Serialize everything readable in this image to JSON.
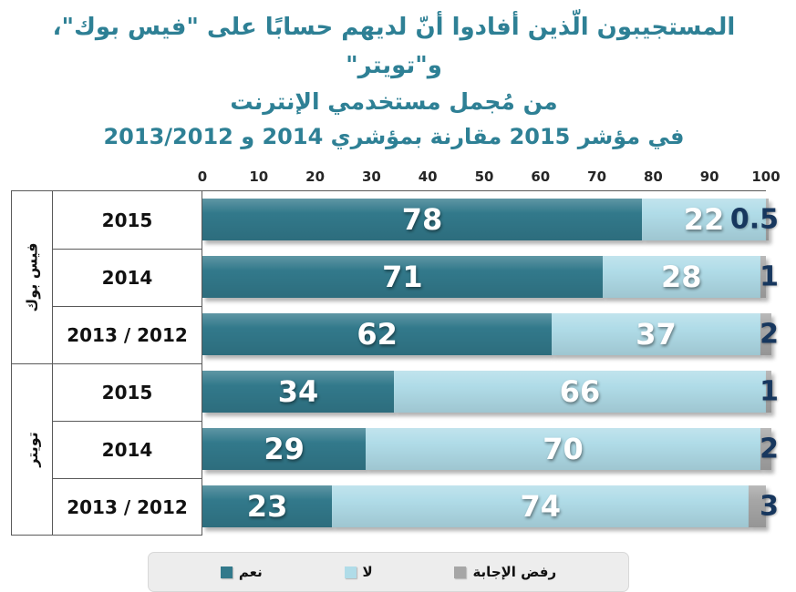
{
  "title": {
    "line1": "المستجيبون الّذين أفادوا أنّ لديهم حسابًا على \"فيس بوك\"، و\"تويتر\"",
    "line2": "من مُجمل مستخدمي الإنترنت",
    "line3": "في مؤشر 2015 مقارنة بمؤشري 2014 و 2013/2012"
  },
  "chart_data": {
    "type": "bar",
    "orientation": "horizontal",
    "stacked": true,
    "title": "المستجيبون الّذين أفادوا أنّ لديهم حسابًا على \"فيس بوك\"، و\"تويتر\" من مُجمل مستخدمي الإنترنت في مؤشر 2015 مقارنة بمؤشري 2014 و 2013/2012",
    "xlabel": "",
    "ylabel": "",
    "xlim": [
      0,
      100
    ],
    "x_ticks": [
      0,
      10,
      20,
      30,
      40,
      50,
      60,
      70,
      80,
      90,
      100
    ],
    "grid": false,
    "legend_position": "bottom",
    "groups": [
      {
        "id": "facebook",
        "label": "فيس بوك",
        "rows": [
          {
            "year": "2015",
            "yes": 78,
            "no": 22,
            "refused": 0.5
          },
          {
            "year": "2014",
            "yes": 71,
            "no": 28,
            "refused": 1
          },
          {
            "year": "2013 / 2012",
            "yes": 62,
            "no": 37,
            "refused": 2
          }
        ]
      },
      {
        "id": "twitter",
        "label": "تويتر",
        "rows": [
          {
            "year": "2015",
            "yes": 34,
            "no": 66,
            "refused": 1
          },
          {
            "year": "2014",
            "yes": 29,
            "no": 70,
            "refused": 2
          },
          {
            "year": "2013 / 2012",
            "yes": 23,
            "no": 74,
            "refused": 3
          }
        ]
      }
    ],
    "legend": [
      {
        "key": "yes",
        "label": "نعم",
        "color": "#32798B"
      },
      {
        "key": "no",
        "label": "لا",
        "color": "#B0DCE8"
      },
      {
        "key": "refused",
        "label": "رفض الإجابة",
        "color": "#A6A6A6"
      }
    ]
  },
  "colors": {
    "title": "#2E8095",
    "yes_bar": "#32798B",
    "no_bar": "#B0DCE8",
    "refused_bar": "#A6A6A6",
    "refused_value_text": "#17375E",
    "grid_line": "#595959",
    "legend_bg": "#EDEDED"
  }
}
